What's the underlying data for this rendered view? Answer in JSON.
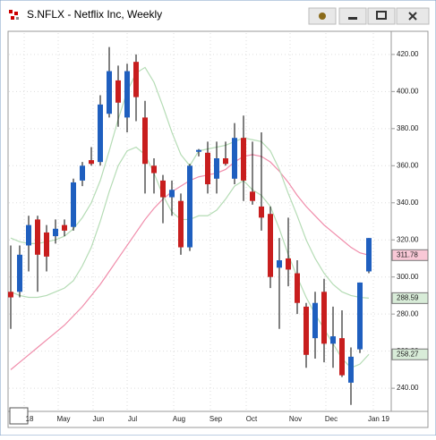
{
  "chart_data": {
    "type": "candlestick",
    "title": "S.NFLX - Netflix Inc, Weekly",
    "open": [
      292,
      292,
      317,
      331,
      324,
      322,
      328,
      327,
      352,
      363,
      362,
      388,
      406,
      386,
      416,
      386,
      360,
      352,
      343,
      341,
      316,
      367.5,
      367,
      353,
      364,
      353,
      375,
      346,
      338,
      334,
      305,
      310,
      302,
      284,
      267,
      292,
      264,
      267,
      243,
      261,
      303
    ],
    "high": [
      317,
      317,
      333,
      333,
      328,
      331,
      331,
      353,
      362,
      370,
      398,
      424,
      414,
      415,
      420,
      395,
      364,
      355,
      352,
      345,
      361,
      369,
      373,
      373,
      373,
      383,
      387,
      373,
      378,
      338,
      321,
      332,
      309,
      286,
      292,
      299,
      284,
      282,
      262,
      297,
      321
    ],
    "low": [
      272,
      289,
      303,
      292,
      303,
      318,
      322,
      325,
      349,
      360,
      360,
      386,
      381,
      378,
      384,
      345,
      345,
      329,
      333,
      312,
      314,
      365,
      345,
      345,
      360,
      350,
      341,
      339,
      325,
      294,
      272,
      295,
      280,
      251,
      256,
      254,
      251,
      246,
      231,
      259,
      302
    ],
    "close": [
      289,
      312,
      328,
      312,
      311,
      326,
      325,
      351,
      360,
      361,
      393,
      411,
      394,
      411,
      397,
      361,
      356,
      343,
      347,
      316,
      360,
      368.5,
      350,
      364,
      361,
      375,
      352,
      341,
      332,
      300,
      309,
      304,
      286,
      258,
      286,
      264,
      268,
      247,
      257,
      297,
      321
    ],
    "up_color": "#1f5fbf",
    "down_color": "#c81e1e",
    "lines": [
      {
        "color": "#f08caa",
        "values": [
          250,
          254,
          258,
          262,
          266,
          270,
          274,
          279,
          284,
          290,
          296,
          303,
          310,
          317,
          324,
          331,
          337,
          342,
          346,
          349,
          352,
          354,
          355,
          356,
          358,
          362,
          365,
          366,
          365,
          362,
          357,
          351,
          344,
          338,
          333,
          328,
          324,
          320,
          316,
          313,
          311.78
        ]
      },
      {
        "color": "#b5dcb5",
        "values": [
          321,
          319,
          318,
          318,
          319,
          320,
          322,
          326,
          332,
          340,
          352,
          368,
          385,
          400,
          410,
          413,
          405,
          392,
          378,
          366,
          360,
          368,
          369,
          370,
          371,
          373,
          375,
          374,
          373,
          368,
          358,
          345,
          333,
          320,
          310,
          302,
          296,
          292,
          290,
          289,
          288.59
        ]
      },
      {
        "color": "#b5dcb5",
        "values": [
          292,
          290,
          289,
          289,
          290,
          292,
          294,
          298,
          306,
          316,
          330,
          346,
          360,
          368,
          370,
          366,
          356,
          344,
          335,
          331,
          331,
          333,
          333,
          336,
          342,
          349,
          352,
          347,
          344,
          338,
          326,
          312,
          300,
          289,
          280,
          272,
          264,
          256,
          251,
          253,
          258.27
        ]
      }
    ],
    "annotations": [
      {
        "value": 311.78,
        "label": "311.78",
        "color": "#f9c8d6"
      },
      {
        "value": 288.59,
        "label": "288.59",
        "color": "#d8ecd8"
      },
      {
        "value": 258.27,
        "label": "258.27",
        "color": "#d8ecd8"
      }
    ],
    "x_labels": [
      "18",
      "May",
      "Jun",
      "Jul",
      "Aug",
      "Sep",
      "Oct",
      "Nov",
      "Dec",
      "Jan 19"
    ],
    "ylim": [
      228,
      432
    ],
    "yticks": [
      {
        "value": 240,
        "label": "240.00"
      },
      {
        "value": 260,
        "label": "260.00"
      },
      {
        "value": 280,
        "label": "280.00"
      },
      {
        "value": 300,
        "label": "300.00"
      },
      {
        "value": 320,
        "label": "320.00"
      },
      {
        "value": 340,
        "label": "340.00"
      },
      {
        "value": 360,
        "label": "360.00"
      },
      {
        "value": 380,
        "label": "380.00"
      },
      {
        "value": 400,
        "label": "400.00"
      },
      {
        "value": 420,
        "label": "420.00"
      }
    ],
    "grid": true
  }
}
